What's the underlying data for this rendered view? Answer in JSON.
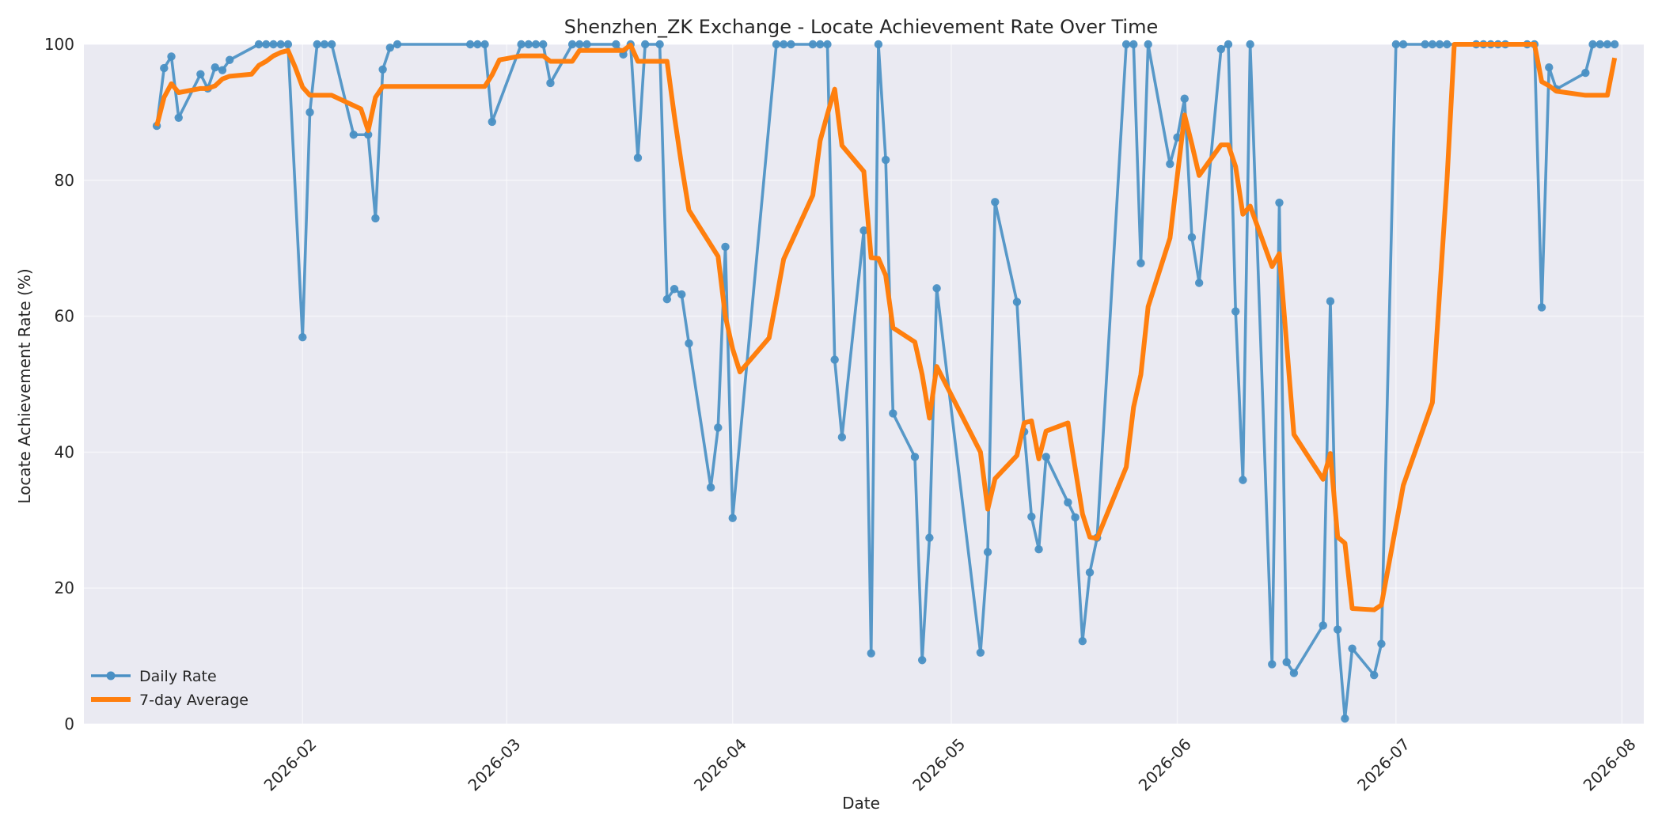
{
  "chart_data": {
    "type": "line",
    "title": "Shenzhen_ZK Exchange - Locate Achievement Rate Over Time",
    "xlabel": "Date",
    "ylabel": "Locate Achievement Rate (%)",
    "x_type": "date",
    "xlim": [
      "2026-01-02",
      "2026-08-04"
    ],
    "ylim": [
      0,
      100
    ],
    "yticks": [
      0,
      20,
      40,
      60,
      80,
      100
    ],
    "xticks": [
      "2026-02-01",
      "2026-03-01",
      "2026-04-01",
      "2026-05-01",
      "2026-06-01",
      "2026-07-01",
      "2026-08-01"
    ],
    "xtick_labels": [
      "2026-02",
      "2026-03",
      "2026-04",
      "2026-05",
      "2026-06",
      "2026-07",
      "2026-08"
    ],
    "grid": true,
    "legend_position": "lower-left",
    "series": [
      {
        "name": "Daily Rate",
        "color": "#4a90c4",
        "marker": "circle",
        "points": [
          [
            "2026-01-12",
            88
          ],
          [
            "2026-01-13",
            96.5
          ],
          [
            "2026-01-14",
            98.2
          ],
          [
            "2026-01-15",
            89.2
          ],
          [
            "2026-01-18",
            95.6
          ],
          [
            "2026-01-19",
            93.5
          ],
          [
            "2026-01-20",
            96.6
          ],
          [
            "2026-01-21",
            96.2
          ],
          [
            "2026-01-22",
            97.7
          ],
          [
            "2026-01-26",
            100
          ],
          [
            "2026-01-27",
            100
          ],
          [
            "2026-01-28",
            100
          ],
          [
            "2026-01-29",
            100
          ],
          [
            "2026-01-30",
            100
          ],
          [
            "2026-02-01",
            56.9
          ],
          [
            "2026-02-02",
            90
          ],
          [
            "2026-02-03",
            100
          ],
          [
            "2026-02-04",
            100
          ],
          [
            "2026-02-05",
            100
          ],
          [
            "2026-02-08",
            86.7
          ],
          [
            "2026-02-10",
            86.7
          ],
          [
            "2026-02-11",
            74.4
          ],
          [
            "2026-02-12",
            96.3
          ],
          [
            "2026-02-13",
            99.5
          ],
          [
            "2026-02-14",
            100
          ],
          [
            "2026-02-24",
            100
          ],
          [
            "2026-02-25",
            100
          ],
          [
            "2026-02-26",
            100
          ],
          [
            "2026-02-27",
            88.6
          ],
          [
            "2026-03-03",
            100
          ],
          [
            "2026-03-04",
            100
          ],
          [
            "2026-03-05",
            100
          ],
          [
            "2026-03-06",
            100
          ],
          [
            "2026-03-07",
            94.3
          ],
          [
            "2026-03-10",
            100
          ],
          [
            "2026-03-11",
            100
          ],
          [
            "2026-03-12",
            100
          ],
          [
            "2026-03-16",
            100
          ],
          [
            "2026-03-17",
            98.5
          ],
          [
            "2026-03-18",
            100
          ],
          [
            "2026-03-19",
            83.3
          ],
          [
            "2026-03-20",
            100
          ],
          [
            "2026-03-22",
            100
          ],
          [
            "2026-03-23",
            62.5
          ],
          [
            "2026-03-24",
            64
          ],
          [
            "2026-03-25",
            63.2
          ],
          [
            "2026-03-26",
            56
          ],
          [
            "2026-03-29",
            34.8
          ],
          [
            "2026-03-30",
            43.6
          ],
          [
            "2026-03-31",
            70.2
          ],
          [
            "2026-04-01",
            30.3
          ],
          [
            "2026-04-07",
            100
          ],
          [
            "2026-04-08",
            100
          ],
          [
            "2026-04-09",
            100
          ],
          [
            "2026-04-12",
            100
          ],
          [
            "2026-04-13",
            100
          ],
          [
            "2026-04-14",
            100
          ],
          [
            "2026-04-15",
            53.6
          ],
          [
            "2026-04-16",
            42.2
          ],
          [
            "2026-04-19",
            72.6
          ],
          [
            "2026-04-20",
            10.4
          ],
          [
            "2026-04-21",
            100
          ],
          [
            "2026-04-22",
            83
          ],
          [
            "2026-04-23",
            45.7
          ],
          [
            "2026-04-26",
            39.3
          ],
          [
            "2026-04-27",
            9.4
          ],
          [
            "2026-04-28",
            27.4
          ],
          [
            "2026-04-29",
            64.1
          ],
          [
            "2026-05-05",
            10.5
          ],
          [
            "2026-05-06",
            25.3
          ],
          [
            "2026-05-07",
            76.8
          ],
          [
            "2026-05-10",
            62.1
          ],
          [
            "2026-05-11",
            43
          ],
          [
            "2026-05-12",
            30.5
          ],
          [
            "2026-05-13",
            25.7
          ],
          [
            "2026-05-14",
            39.3
          ],
          [
            "2026-05-17",
            32.6
          ],
          [
            "2026-05-18",
            30.4
          ],
          [
            "2026-05-19",
            12.2
          ],
          [
            "2026-05-20",
            22.3
          ],
          [
            "2026-05-21",
            27.4
          ],
          [
            "2026-05-25",
            100
          ],
          [
            "2026-05-26",
            100
          ],
          [
            "2026-05-27",
            67.8
          ],
          [
            "2026-05-28",
            100
          ],
          [
            "2026-05-31",
            82.4
          ],
          [
            "2026-06-01",
            86.3
          ],
          [
            "2026-06-02",
            92
          ],
          [
            "2026-06-03",
            71.6
          ],
          [
            "2026-06-04",
            64.9
          ],
          [
            "2026-06-07",
            99.3
          ],
          [
            "2026-06-08",
            100
          ],
          [
            "2026-06-09",
            60.7
          ],
          [
            "2026-06-10",
            35.9
          ],
          [
            "2026-06-11",
            100
          ],
          [
            "2026-06-14",
            8.8
          ],
          [
            "2026-06-15",
            76.7
          ],
          [
            "2026-06-16",
            9.1
          ],
          [
            "2026-06-17",
            7.5
          ],
          [
            "2026-06-21",
            14.5
          ],
          [
            "2026-06-22",
            62.2
          ],
          [
            "2026-06-23",
            13.9
          ],
          [
            "2026-06-24",
            0.8
          ],
          [
            "2026-06-25",
            11.1
          ],
          [
            "2026-06-28",
            7.2
          ],
          [
            "2026-06-29",
            11.8
          ],
          [
            "2026-07-01",
            100
          ],
          [
            "2026-07-02",
            100
          ],
          [
            "2026-07-05",
            100
          ],
          [
            "2026-07-06",
            100
          ],
          [
            "2026-07-07",
            100
          ],
          [
            "2026-07-08",
            100
          ],
          [
            "2026-07-12",
            100
          ],
          [
            "2026-07-13",
            100
          ],
          [
            "2026-07-14",
            100
          ],
          [
            "2026-07-15",
            100
          ],
          [
            "2026-07-16",
            100
          ],
          [
            "2026-07-19",
            100
          ],
          [
            "2026-07-20",
            100
          ],
          [
            "2026-07-21",
            61.3
          ],
          [
            "2026-07-22",
            96.6
          ],
          [
            "2026-07-23",
            93.4
          ],
          [
            "2026-07-27",
            95.8
          ],
          [
            "2026-07-28",
            100
          ],
          [
            "2026-07-29",
            100
          ],
          [
            "2026-07-30",
            100
          ],
          [
            "2026-07-31",
            100
          ]
        ]
      },
      {
        "name": "7-day Average",
        "color": "#ff7f0e",
        "points": [
          [
            "2026-01-12",
            88
          ],
          [
            "2026-01-13",
            92.2
          ],
          [
            "2026-01-14",
            94.2
          ],
          [
            "2026-01-15",
            92.9
          ],
          [
            "2026-01-18",
            93.5
          ],
          [
            "2026-01-19",
            93.5
          ],
          [
            "2026-01-20",
            93.9
          ],
          [
            "2026-01-21",
            94.9
          ],
          [
            "2026-01-22",
            95.3
          ],
          [
            "2026-01-25",
            95.6
          ],
          [
            "2026-01-26",
            96.9
          ],
          [
            "2026-01-27",
            97.5
          ],
          [
            "2026-01-28",
            98.3
          ],
          [
            "2026-01-29",
            98.8
          ],
          [
            "2026-01-30",
            99.1
          ],
          [
            "2026-01-31",
            96.6
          ],
          [
            "2026-02-01",
            93.7
          ],
          [
            "2026-02-02",
            92.5
          ],
          [
            "2026-02-05",
            92.5
          ],
          [
            "2026-02-09",
            90.5
          ],
          [
            "2026-02-10",
            87.3
          ],
          [
            "2026-02-11",
            92.2
          ],
          [
            "2026-02-12",
            93.8
          ],
          [
            "2026-02-26",
            93.8
          ],
          [
            "2026-02-27",
            95.5
          ],
          [
            "2026-02-28",
            97.7
          ],
          [
            "2026-03-03",
            98.3
          ],
          [
            "2026-03-06",
            98.3
          ],
          [
            "2026-03-07",
            97.5
          ],
          [
            "2026-03-10",
            97.5
          ],
          [
            "2026-03-11",
            99.1
          ],
          [
            "2026-03-17",
            99.1
          ],
          [
            "2026-03-18",
            99.9
          ],
          [
            "2026-03-19",
            97.5
          ],
          [
            "2026-03-23",
            97.5
          ],
          [
            "2026-03-24",
            89.5
          ],
          [
            "2026-03-25",
            82.2
          ],
          [
            "2026-03-26",
            75.6
          ],
          [
            "2026-03-30",
            68.8
          ],
          [
            "2026-03-31",
            60
          ],
          [
            "2026-04-01",
            55.2
          ],
          [
            "2026-04-02",
            51.8
          ],
          [
            "2026-04-06",
            56.8
          ],
          [
            "2026-04-07",
            62.5
          ],
          [
            "2026-04-08",
            68.4
          ],
          [
            "2026-04-12",
            77.8
          ],
          [
            "2026-04-13",
            85.8
          ],
          [
            "2026-04-14",
            89.7
          ],
          [
            "2026-04-15",
            93.4
          ],
          [
            "2026-04-16",
            85.1
          ],
          [
            "2026-04-19",
            81.3
          ],
          [
            "2026-04-20",
            68.6
          ],
          [
            "2026-04-21",
            68.5
          ],
          [
            "2026-04-22",
            66
          ],
          [
            "2026-04-23",
            58.3
          ],
          [
            "2026-04-26",
            56.2
          ],
          [
            "2026-04-27",
            51.4
          ],
          [
            "2026-04-28",
            45
          ],
          [
            "2026-04-29",
            52.6
          ],
          [
            "2026-05-05",
            40
          ],
          [
            "2026-05-06",
            31.6
          ],
          [
            "2026-05-07",
            36.1
          ],
          [
            "2026-05-10",
            39.5
          ],
          [
            "2026-05-11",
            44.3
          ],
          [
            "2026-05-12",
            44.6
          ],
          [
            "2026-05-13",
            39
          ],
          [
            "2026-05-14",
            43.1
          ],
          [
            "2026-05-17",
            44.3
          ],
          [
            "2026-05-19",
            30.9
          ],
          [
            "2026-05-20",
            27.5
          ],
          [
            "2026-05-21",
            27.3
          ],
          [
            "2026-05-25",
            37.8
          ],
          [
            "2026-05-26",
            46.6
          ],
          [
            "2026-05-27",
            51.4
          ],
          [
            "2026-05-28",
            61.4
          ],
          [
            "2026-05-31",
            71.5
          ],
          [
            "2026-06-01",
            80.6
          ],
          [
            "2026-06-02",
            89.6
          ],
          [
            "2026-06-03",
            85.3
          ],
          [
            "2026-06-04",
            80.7
          ],
          [
            "2026-06-07",
            85.2
          ],
          [
            "2026-06-08",
            85.2
          ],
          [
            "2026-06-09",
            82
          ],
          [
            "2026-06-10",
            75
          ],
          [
            "2026-06-11",
            76.2
          ],
          [
            "2026-06-14",
            67.3
          ],
          [
            "2026-06-15",
            69.2
          ],
          [
            "2026-06-17",
            42.6
          ],
          [
            "2026-06-21",
            36
          ],
          [
            "2026-06-22",
            39.8
          ],
          [
            "2026-06-23",
            27.5
          ],
          [
            "2026-06-24",
            26.6
          ],
          [
            "2026-06-25",
            17
          ],
          [
            "2026-06-28",
            16.8
          ],
          [
            "2026-06-29",
            17.5
          ],
          [
            "2026-07-01",
            29.2
          ],
          [
            "2026-07-02",
            35.1
          ],
          [
            "2026-07-06",
            47.3
          ],
          [
            "2026-07-07",
            63.6
          ],
          [
            "2026-07-08",
            80
          ],
          [
            "2026-07-09",
            100
          ],
          [
            "2026-07-20",
            100
          ],
          [
            "2026-07-21",
            94.5
          ],
          [
            "2026-07-22",
            93.9
          ],
          [
            "2026-07-23",
            93.1
          ],
          [
            "2026-07-27",
            92.5
          ],
          [
            "2026-07-30",
            92.5
          ],
          [
            "2026-07-31",
            98
          ]
        ]
      }
    ]
  }
}
